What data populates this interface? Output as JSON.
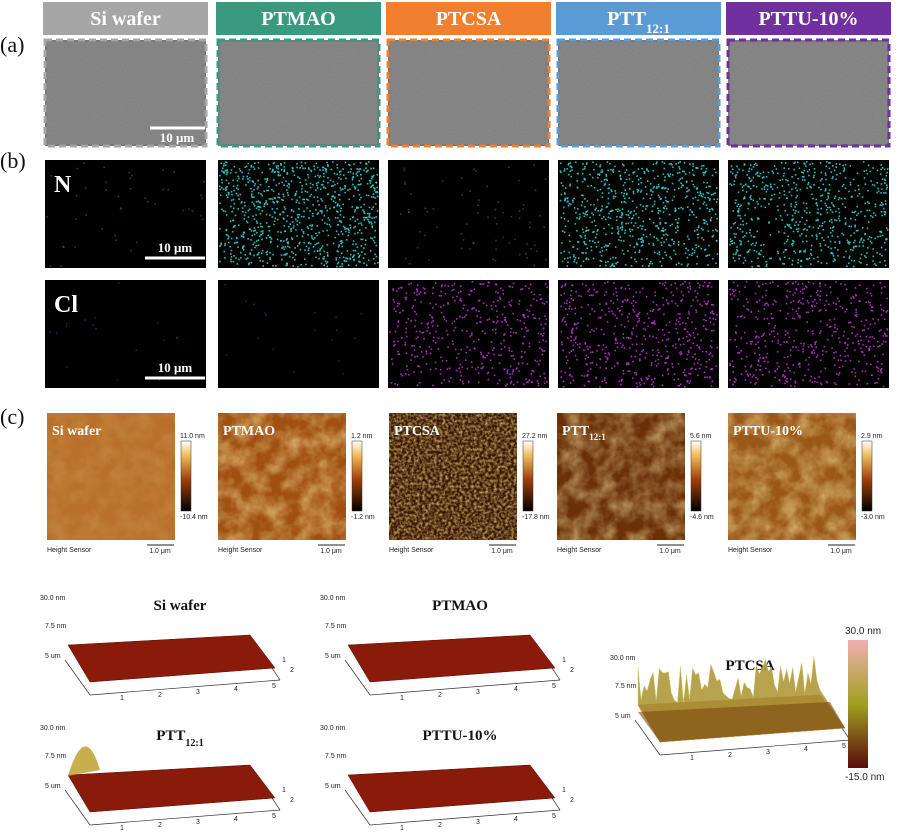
{
  "panels": {
    "a": "(a)",
    "b": "(b)",
    "c": "(c)"
  },
  "samples": [
    {
      "name": "Si wafer"
    },
    {
      "name": "PTMAO"
    },
    {
      "name": "PTCSA"
    },
    {
      "name": "PTT",
      "sub": "12:1"
    },
    {
      "name": "PTTU-10%"
    }
  ],
  "sem": {
    "scale_bar": "10 μm"
  },
  "eds": {
    "elements": [
      "N",
      "Cl"
    ],
    "scale_bar": "10 μm"
  },
  "afm": {
    "sensor": "Height Sensor",
    "scale_bar": "1.0 μm",
    "ranges": [
      {
        "max": "11.0 nm",
        "min": "-10.4 nm"
      },
      {
        "max": "1.2 nm",
        "min": "-1.2 nm"
      },
      {
        "max": "27.2 nm",
        "min": "-17.8 nm"
      },
      {
        "max": "5.6 nm",
        "min": "-4.6 nm"
      },
      {
        "max": "2.9 nm",
        "min": "-3.0 nm"
      }
    ]
  },
  "afm3d": {
    "z_max": "30.0 nm",
    "z_mid": "7.5 nm",
    "y_label": "5 um",
    "x_ticks": [
      "1",
      "2",
      "3",
      "4",
      "5"
    ],
    "y_ticks": [
      "1",
      "2"
    ],
    "colorbar": {
      "max": "30.0 nm",
      "min": "-15.0 nm"
    }
  }
}
